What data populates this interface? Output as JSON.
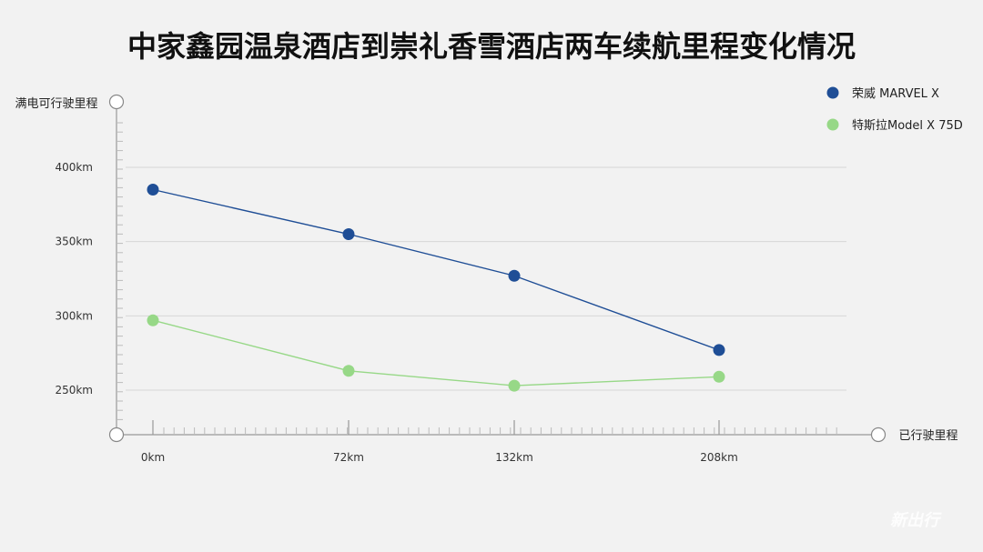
{
  "title": "中家鑫园温泉酒店到崇礼香雪酒店两车续航里程变化情况",
  "watermark": "新出行",
  "chart_data": {
    "type": "line",
    "title": "中家鑫园温泉酒店到崇礼香雪酒店两车续航里程变化情况",
    "xlabel": "已行驶里程",
    "ylabel": "满电可行驶里程",
    "categories": [
      "0km",
      "72km",
      "132km",
      "208km"
    ],
    "x": [
      0,
      72,
      132,
      208
    ],
    "x_unit": "km",
    "y_ticks": [
      "250km",
      "300km",
      "350km",
      "400km"
    ],
    "ylim": [
      250,
      400
    ],
    "y_unit": "km",
    "grid": true,
    "legend_position": "top-right",
    "series": [
      {
        "name": "荣威 MARVEL X",
        "color": "#1f4e96",
        "values": [
          385,
          355,
          327,
          277
        ]
      },
      {
        "name": "特斯拉Model X 75D",
        "color": "#97d887",
        "values": [
          297,
          263,
          253,
          259
        ]
      }
    ]
  }
}
